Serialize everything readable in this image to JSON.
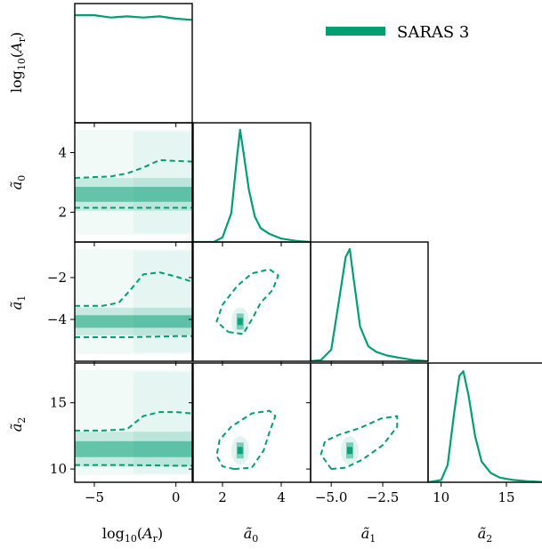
{
  "chart_data": {
    "type": "corner",
    "accent_color": "#009e73",
    "legend": {
      "label": "SARAS 3",
      "position": "top-right"
    },
    "parameters": [
      {
        "key": "logAr",
        "label": "log₁₀(A_r)",
        "range": [
          -6.2,
          1.0
        ],
        "ticks": [
          -5,
          0
        ],
        "tick_labels": [
          "−5",
          "0"
        ]
      },
      {
        "key": "a0",
        "label": "ã₀",
        "range": [
          1.0,
          5.0
        ],
        "ticks": [
          2,
          4
        ],
        "tick_labels": [
          "2",
          "4"
        ]
      },
      {
        "key": "a1",
        "label": "ã₁",
        "range": [
          -6.0,
          -0.3
        ],
        "ticks": [
          -5.0,
          -2.5
        ],
        "tick_labels": [
          "−5.0",
          "−2.5"
        ],
        "y_ticks": [
          -4,
          -2
        ],
        "y_tick_labels": [
          "−4",
          "−2"
        ]
      },
      {
        "key": "a2",
        "label": "ã₂",
        "range": [
          9.0,
          18.0
        ],
        "ticks": [
          10,
          15
        ],
        "tick_labels": [
          "10",
          "15"
        ]
      }
    ],
    "marginals": [
      {
        "param": 0,
        "x": [
          -6.2,
          -5.0,
          -4.0,
          -3.0,
          -2.0,
          -1.0,
          0.0,
          1.0
        ],
        "y": [
          0.93,
          0.93,
          0.91,
          0.92,
          0.91,
          0.92,
          0.9,
          0.89
        ]
      },
      {
        "param": 1,
        "x": [
          1.0,
          1.7,
          2.0,
          2.3,
          2.5,
          2.6,
          2.7,
          2.9,
          3.1,
          3.3,
          3.6,
          4.0,
          4.5,
          5.0
        ],
        "y": [
          0.0,
          0.0,
          0.04,
          0.25,
          0.75,
          0.97,
          0.8,
          0.45,
          0.22,
          0.12,
          0.07,
          0.03,
          0.01,
          0.0
        ]
      },
      {
        "param": 2,
        "x": [
          -6.0,
          -5.5,
          -5.0,
          -4.6,
          -4.3,
          -4.1,
          -3.9,
          -3.6,
          -3.2,
          -2.8,
          -2.3,
          -1.7,
          -1.0,
          -0.3
        ],
        "y": [
          0.0,
          0.01,
          0.1,
          0.55,
          0.9,
          0.97,
          0.7,
          0.3,
          0.13,
          0.08,
          0.05,
          0.03,
          0.01,
          0.0
        ]
      },
      {
        "param": 3,
        "x": [
          9.0,
          10.0,
          10.5,
          11.0,
          11.4,
          11.7,
          12.1,
          12.6,
          13.1,
          13.8,
          14.5,
          15.5,
          16.5,
          18.0
        ],
        "y": [
          0.0,
          0.02,
          0.15,
          0.6,
          0.92,
          0.96,
          0.75,
          0.4,
          0.18,
          0.08,
          0.04,
          0.02,
          0.01,
          0.0
        ]
      }
    ],
    "contours": [
      {
        "x_param": 0,
        "y_param": 1,
        "levels": [
          [
            [
              -6.2,
              3.15
            ],
            [
              -4.0,
              3.2
            ],
            [
              -3.0,
              3.3
            ],
            [
              -2.0,
              3.5
            ],
            [
              -1.0,
              3.75
            ],
            [
              0.0,
              3.72
            ],
            [
              1.0,
              3.7
            ]
          ],
          [
            [
              -6.2,
              2.15
            ],
            [
              -3.0,
              2.15
            ],
            [
              0.0,
              2.15
            ],
            [
              1.0,
              2.15
            ]
          ]
        ]
      },
      {
        "x_param": 0,
        "y_param": 2,
        "levels": [
          [
            [
              -6.2,
              -3.35
            ],
            [
              -4.5,
              -3.35
            ],
            [
              -3.5,
              -3.2
            ],
            [
              -2.8,
              -2.6
            ],
            [
              -2.0,
              -1.85
            ],
            [
              -1.0,
              -1.75
            ],
            [
              0.0,
              -1.95
            ],
            [
              1.0,
              -2.2
            ]
          ],
          [
            [
              -6.2,
              -4.85
            ],
            [
              -3.0,
              -4.85
            ],
            [
              0.0,
              -4.8
            ],
            [
              1.0,
              -4.8
            ]
          ]
        ]
      },
      {
        "x_param": 0,
        "y_param": 3,
        "levels": [
          [
            [
              -6.2,
              12.9
            ],
            [
              -4.5,
              12.9
            ],
            [
              -3.0,
              13.0
            ],
            [
              -2.0,
              14.0
            ],
            [
              -1.0,
              14.3
            ],
            [
              0.0,
              14.3
            ],
            [
              1.0,
              14.2
            ]
          ],
          [
            [
              -6.2,
              10.3
            ],
            [
              -3.0,
              10.3
            ],
            [
              0.0,
              10.25
            ],
            [
              1.0,
              10.25
            ]
          ]
        ]
      },
      {
        "x_param": 1,
        "y_param": 2,
        "levels": [
          [
            [
              2.2,
              -4.6
            ],
            [
              2.7,
              -4.7
            ],
            [
              3.0,
              -4.0
            ],
            [
              3.3,
              -3.2
            ],
            [
              3.7,
              -2.6
            ],
            [
              3.9,
              -1.9
            ],
            [
              3.6,
              -1.6
            ],
            [
              3.0,
              -1.8
            ],
            [
              2.5,
              -2.4
            ],
            [
              2.0,
              -3.3
            ],
            [
              1.8,
              -4.1
            ],
            [
              2.2,
              -4.6
            ]
          ]
        ]
      },
      {
        "x_param": 1,
        "y_param": 3,
        "levels": [
          [
            [
              2.4,
              10.0
            ],
            [
              3.0,
              10.1
            ],
            [
              3.4,
              11.4
            ],
            [
              3.6,
              12.8
            ],
            [
              3.8,
              14.0
            ],
            [
              3.6,
              14.4
            ],
            [
              3.0,
              14.2
            ],
            [
              2.3,
              13.2
            ],
            [
              1.9,
              12.2
            ],
            [
              1.8,
              11.0
            ],
            [
              2.0,
              10.2
            ],
            [
              2.4,
              10.0
            ]
          ]
        ]
      },
      {
        "x_param": 2,
        "y_param": 3,
        "levels": [
          [
            [
              -5.0,
              10.0
            ],
            [
              -4.3,
              10.1
            ],
            [
              -3.5,
              10.7
            ],
            [
              -2.5,
              11.8
            ],
            [
              -1.8,
              13.2
            ],
            [
              -1.8,
              14.0
            ],
            [
              -2.6,
              13.8
            ],
            [
              -3.6,
              13.1
            ],
            [
              -4.6,
              12.6
            ],
            [
              -5.3,
              12.1
            ],
            [
              -5.5,
              11.1
            ],
            [
              -5.0,
              10.0
            ]
          ]
        ]
      }
    ],
    "density_peaks": [
      {
        "x_param": 0,
        "y_param": 1,
        "band_y": 2.6,
        "band_width": 0.25
      },
      {
        "x_param": 0,
        "y_param": 2,
        "band_y": -4.1,
        "band_width": 0.3
      },
      {
        "x_param": 0,
        "y_param": 3,
        "band_y": 11.5,
        "band_width": 0.6
      },
      {
        "x_param": 1,
        "y_param": 2,
        "peak": [
          2.6,
          -4.1
        ]
      },
      {
        "x_param": 1,
        "y_param": 3,
        "peak": [
          2.6,
          11.4
        ]
      },
      {
        "x_param": 2,
        "y_param": 3,
        "peak": [
          -4.1,
          11.4
        ]
      }
    ],
    "grid": false
  }
}
